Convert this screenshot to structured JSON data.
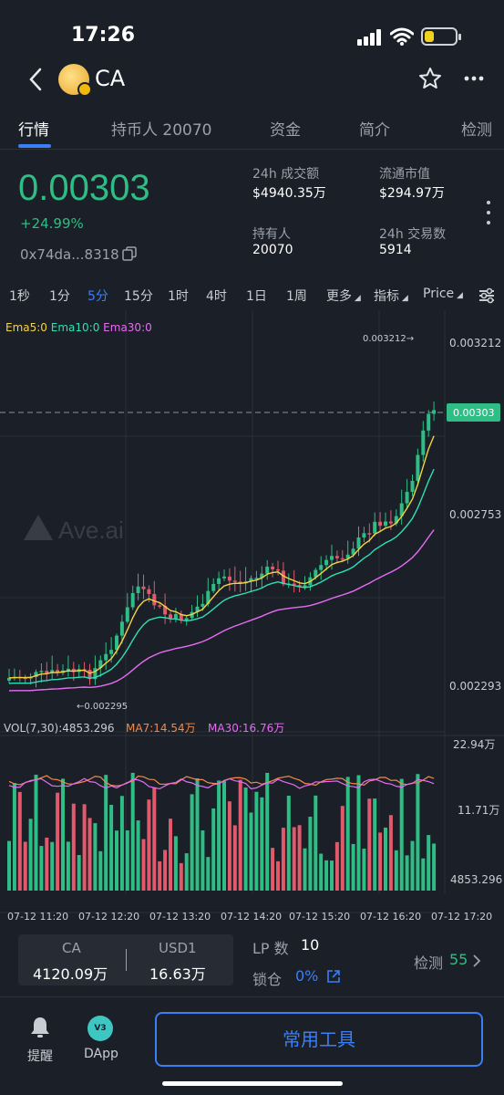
{
  "status_bar": {
    "time": "17:26"
  },
  "nav": {
    "title": "CA"
  },
  "tabs": [
    {
      "label": "行情"
    },
    {
      "label": "持币人 20070"
    },
    {
      "label": "资金"
    },
    {
      "label": "简介"
    },
    {
      "label": "检测"
    }
  ],
  "summary": {
    "price": "0.00303",
    "change": "+24.99%",
    "address": "0x74da...8318",
    "stats": [
      {
        "label": "24h 成交额",
        "value": "$4940.35万"
      },
      {
        "label": "流通市值",
        "value": "$294.97万"
      },
      {
        "label": "持有人",
        "value": "20070"
      },
      {
        "label": "24h 交易数",
        "value": "5914"
      }
    ]
  },
  "timeframes": [
    "1秒",
    "1分",
    "5分",
    "15分",
    "1时",
    "4时",
    "1日",
    "1周",
    "更多",
    "指标",
    "Price"
  ],
  "chart_data": {
    "type": "candlestick",
    "legend": {
      "ema5": "Ema5:0",
      "ema10": "Ema10:0",
      "ema30": "Ema30:0"
    },
    "watermark": "Ave.ai",
    "price_axis": [
      "0.003212",
      "0.002753",
      "0.002293"
    ],
    "current_price": "0.00303",
    "max_label": "0.003212→",
    "min_label": "←0.002295",
    "volume_legend": {
      "vol": "VOL(7,30):4853.296",
      "ma7": "MA7:14.54万",
      "ma30": "MA30:16.76万"
    },
    "volume_axis": [
      "22.94万",
      "11.71万",
      "4853.296"
    ],
    "x_labels": [
      "07-12 11:20",
      "07-12 12:20",
      "07-12 13:20",
      "07-12 14:20",
      "07-12 15:20",
      "07-12 16:20",
      "07-12 17:20"
    ],
    "colors": {
      "up": "#2ebd85",
      "down": "#e15a6c",
      "ema5": "#f5d443",
      "ema10": "#2ee0b5",
      "ema30": "#e66cf5"
    }
  },
  "pair": {
    "token_label": "CA",
    "token_value": "4120.09万",
    "quote_label": "USD1",
    "quote_value": "16.63万"
  },
  "liquidity": {
    "lp_label": "LP 数",
    "lp_value": "10",
    "lock_label": "锁仓",
    "lock_value": "0%"
  },
  "check": {
    "label": "检测",
    "value": "55"
  },
  "footer": {
    "alert_label": "提醒",
    "dapp_label": "DApp",
    "dapp_badge": "V3",
    "tools_label": "常用工具"
  }
}
